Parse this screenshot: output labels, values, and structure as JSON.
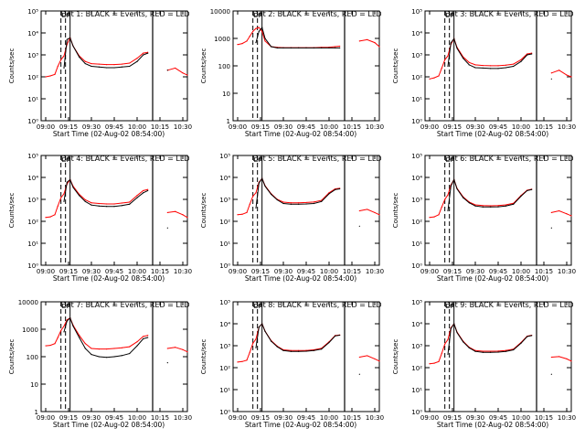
{
  "figure": {
    "x_axis_title": "Start Time (02-Aug-02 08:54:00)",
    "y_axis_title": "Counts/sec",
    "series_colors": {
      "black": "#000000",
      "red": "#ff0000"
    },
    "x_tick_labels": [
      "09:00",
      "09:15",
      "09:30",
      "09:45",
      "10:00",
      "10:15",
      "10:30"
    ],
    "markers": [
      "D",
      "P"
    ]
  },
  "chart_data": [
    {
      "type": "line",
      "title": "Det 1: BLACK = Events, RED = LLD",
      "ylog": true,
      "y_ticks": [
        {
          "v": 1,
          "label": "10⁰"
        },
        {
          "v": 10,
          "label": "10¹"
        },
        {
          "v": 100,
          "label": "10²"
        },
        {
          "v": 1000,
          "label": "10³"
        },
        {
          "v": 10000,
          "label": "10⁴"
        },
        {
          "v": 100000,
          "label": "10⁵"
        }
      ],
      "ylim": [
        1,
        100000
      ],
      "x": [
        "09:00",
        "09:03",
        "09:06",
        "09:08",
        "09:10",
        "09:12",
        "09:14",
        "09:16",
        "09:18",
        "09:22",
        "09:26",
        "09:30",
        "09:35",
        "09:40",
        "09:45",
        "09:50",
        "09:55",
        "10:00",
        "10:04",
        "10:07",
        "10:10",
        "10:13",
        "10:16",
        "10:20",
        "10:25",
        "10:30",
        "10:33"
      ],
      "series": [
        {
          "name": "BLACK",
          "values": [
            null,
            null,
            null,
            null,
            null,
            250,
            5000,
            6000,
            2500,
            800,
            400,
            300,
            280,
            260,
            260,
            280,
            300,
            500,
            1000,
            1200,
            null,
            null,
            null,
            200,
            null,
            null,
            null
          ]
        },
        {
          "name": "RED",
          "values": [
            100,
            110,
            130,
            300,
            600,
            900,
            3000,
            6000,
            2500,
            900,
            500,
            400,
            380,
            360,
            360,
            380,
            420,
            700,
            1200,
            1300,
            null,
            null,
            null,
            200,
            250,
            150,
            120
          ]
        }
      ]
    },
    {
      "type": "line",
      "title": "Det 2: BLACK = Events, RED = LLD",
      "ylog": true,
      "y_ticks": [
        {
          "v": 1,
          "label": "1"
        },
        {
          "v": 10,
          "label": "10"
        },
        {
          "v": 100,
          "label": "100"
        },
        {
          "v": 1000,
          "label": "1000"
        },
        {
          "v": 10000,
          "label": "10000"
        }
      ],
      "ylim": [
        1,
        10000
      ],
      "x": [
        "09:00",
        "09:03",
        "09:06",
        "09:08",
        "09:10",
        "09:12",
        "09:14",
        "09:16",
        "09:18",
        "09:22",
        "09:26",
        "09:30",
        "09:35",
        "09:40",
        "09:45",
        "09:50",
        "09:55",
        "10:00",
        "10:04",
        "10:07",
        "10:10",
        "10:13",
        "10:16",
        "10:20",
        "10:25",
        "10:30",
        "10:33"
      ],
      "series": [
        {
          "name": "BLACK",
          "values": [
            null,
            null,
            null,
            null,
            null,
            700,
            1800,
            2500,
            1000,
            500,
            450,
            450,
            450,
            450,
            450,
            450,
            450,
            450,
            450,
            450,
            null,
            null,
            null,
            null,
            null,
            null,
            null
          ]
        },
        {
          "name": "RED",
          "values": [
            600,
            650,
            800,
            1200,
            1800,
            2300,
            2500,
            1800,
            800,
            500,
            470,
            460,
            460,
            460,
            460,
            460,
            470,
            480,
            500,
            520,
            null,
            null,
            null,
            800,
            900,
            700,
            500
          ]
        }
      ]
    },
    {
      "type": "line",
      "title": "Det 3: BLACK = Events, RED = LLD",
      "ylog": true,
      "y_ticks": [
        {
          "v": 1,
          "label": "10⁰"
        },
        {
          "v": 10,
          "label": "10¹"
        },
        {
          "v": 100,
          "label": "10²"
        },
        {
          "v": 1000,
          "label": "10³"
        },
        {
          "v": 10000,
          "label": "10⁴"
        },
        {
          "v": 100000,
          "label": "10⁵"
        }
      ],
      "ylim": [
        1,
        100000
      ],
      "x": [
        "09:00",
        "09:03",
        "09:06",
        "09:08",
        "09:10",
        "09:12",
        "09:14",
        "09:16",
        "09:18",
        "09:22",
        "09:26",
        "09:30",
        "09:35",
        "09:40",
        "09:45",
        "09:50",
        "09:55",
        "10:00",
        "10:04",
        "10:07",
        "10:10",
        "10:13",
        "10:16",
        "10:20",
        "10:25",
        "10:30",
        "10:33"
      ],
      "series": [
        {
          "name": "BLACK",
          "values": [
            null,
            null,
            null,
            null,
            null,
            300,
            3500,
            5500,
            2000,
            700,
            350,
            260,
            250,
            240,
            240,
            260,
            300,
            500,
            1000,
            1100,
            null,
            null,
            null,
            80,
            null,
            null,
            null
          ]
        },
        {
          "name": "RED",
          "values": [
            80,
            90,
            110,
            250,
            600,
            900,
            3000,
            5500,
            2200,
            800,
            450,
            350,
            330,
            320,
            320,
            340,
            380,
            600,
            1100,
            1200,
            null,
            null,
            null,
            150,
            200,
            120,
            100
          ]
        }
      ]
    },
    {
      "type": "line",
      "title": "Det 4: BLACK = Events, RED = LLD",
      "ylog": true,
      "y_ticks": [
        {
          "v": 1,
          "label": "10⁰"
        },
        {
          "v": 10,
          "label": "10¹"
        },
        {
          "v": 100,
          "label": "10²"
        },
        {
          "v": 1000,
          "label": "10³"
        },
        {
          "v": 10000,
          "label": "10⁴"
        },
        {
          "v": 100000,
          "label": "10⁵"
        }
      ],
      "ylim": [
        1,
        100000
      ],
      "x": [
        "09:00",
        "09:03",
        "09:06",
        "09:08",
        "09:10",
        "09:12",
        "09:14",
        "09:16",
        "09:18",
        "09:22",
        "09:26",
        "09:30",
        "09:35",
        "09:40",
        "09:45",
        "09:50",
        "09:55",
        "10:00",
        "10:04",
        "10:07",
        "10:10",
        "10:13",
        "10:16",
        "10:20",
        "10:25",
        "10:30",
        "10:33"
      ],
      "series": [
        {
          "name": "BLACK",
          "values": [
            null,
            null,
            null,
            null,
            null,
            800,
            6000,
            8000,
            3500,
            1500,
            800,
            550,
            500,
            480,
            480,
            520,
            600,
            1200,
            2000,
            2500,
            null,
            null,
            null,
            50,
            null,
            null,
            null
          ]
        },
        {
          "name": "RED",
          "values": [
            150,
            160,
            200,
            500,
            1200,
            1800,
            5000,
            8000,
            4000,
            1700,
            950,
            700,
            650,
            620,
            620,
            680,
            750,
            1500,
            2500,
            2800,
            null,
            null,
            null,
            250,
            280,
            200,
            150
          ]
        }
      ]
    },
    {
      "type": "line",
      "title": "Det 5: BLACK = Events, RED = LLD",
      "ylog": true,
      "y_ticks": [
        {
          "v": 1,
          "label": "10⁰"
        },
        {
          "v": 10,
          "label": "10¹"
        },
        {
          "v": 100,
          "label": "10²"
        },
        {
          "v": 1000,
          "label": "10³"
        },
        {
          "v": 10000,
          "label": "10⁴"
        },
        {
          "v": 100000,
          "label": "10⁵"
        }
      ],
      "ylim": [
        1,
        100000
      ],
      "x": [
        "09:00",
        "09:03",
        "09:06",
        "09:08",
        "09:10",
        "09:12",
        "09:14",
        "09:16",
        "09:18",
        "09:22",
        "09:26",
        "09:30",
        "09:35",
        "09:40",
        "09:45",
        "09:50",
        "09:55",
        "10:00",
        "10:04",
        "10:07",
        "10:10",
        "10:13",
        "10:16",
        "10:20",
        "10:25",
        "10:30",
        "10:33"
      ],
      "series": [
        {
          "name": "BLACK",
          "values": [
            null,
            null,
            null,
            null,
            null,
            400,
            5500,
            9000,
            4000,
            1700,
            950,
            650,
            600,
            600,
            620,
            650,
            800,
            1800,
            2800,
            3000,
            null,
            null,
            null,
            60,
            null,
            null,
            null
          ]
        },
        {
          "name": "RED",
          "values": [
            200,
            210,
            250,
            600,
            1400,
            2000,
            6000,
            9000,
            4200,
            1800,
            1000,
            750,
            700,
            700,
            720,
            760,
            900,
            2000,
            3000,
            3200,
            null,
            null,
            null,
            300,
            350,
            250,
            200
          ]
        }
      ]
    },
    {
      "type": "line",
      "title": "Det 6: BLACK = Events, RED = LLD",
      "ylog": true,
      "y_ticks": [
        {
          "v": 1,
          "label": "10⁰"
        },
        {
          "v": 10,
          "label": "10¹"
        },
        {
          "v": 100,
          "label": "10²"
        },
        {
          "v": 1000,
          "label": "10³"
        },
        {
          "v": 10000,
          "label": "10⁴"
        },
        {
          "v": 100000,
          "label": "10⁵"
        }
      ],
      "ylim": [
        1,
        100000
      ],
      "x": [
        "09:00",
        "09:03",
        "09:06",
        "09:08",
        "09:10",
        "09:12",
        "09:14",
        "09:16",
        "09:18",
        "09:22",
        "09:26",
        "09:30",
        "09:35",
        "09:40",
        "09:45",
        "09:50",
        "09:55",
        "10:00",
        "10:04",
        "10:07",
        "10:10",
        "10:13",
        "10:16",
        "10:20",
        "10:25",
        "10:30",
        "10:33"
      ],
      "series": [
        {
          "name": "BLACK",
          "values": [
            null,
            null,
            null,
            null,
            null,
            300,
            4000,
            8000,
            3000,
            1200,
            700,
            500,
            450,
            450,
            460,
            500,
            600,
            1400,
            2500,
            2800,
            null,
            null,
            null,
            50,
            null,
            null,
            null
          ]
        },
        {
          "name": "RED",
          "values": [
            150,
            160,
            200,
            450,
            1000,
            1600,
            4500,
            8000,
            3200,
            1300,
            760,
            560,
            520,
            510,
            520,
            560,
            660,
            1500,
            2600,
            2900,
            null,
            null,
            null,
            250,
            300,
            220,
            180
          ]
        }
      ]
    },
    {
      "type": "line",
      "title": "Det 7: BLACK = Events, RED = LLD",
      "ylog": true,
      "y_ticks": [
        {
          "v": 1,
          "label": "1"
        },
        {
          "v": 10,
          "label": "10"
        },
        {
          "v": 100,
          "label": "100"
        },
        {
          "v": 1000,
          "label": "1000"
        },
        {
          "v": 10000,
          "label": "10000"
        }
      ],
      "ylim": [
        1,
        10000
      ],
      "x": [
        "09:00",
        "09:03",
        "09:06",
        "09:08",
        "09:10",
        "09:12",
        "09:14",
        "09:16",
        "09:18",
        "09:22",
        "09:26",
        "09:30",
        "09:35",
        "09:40",
        "09:45",
        "09:50",
        "09:55",
        "10:00",
        "10:04",
        "10:07",
        "10:10",
        "10:13",
        "10:16",
        "10:20",
        "10:25",
        "10:30",
        "10:33"
      ],
      "series": [
        {
          "name": "BLACK",
          "values": [
            null,
            null,
            null,
            null,
            null,
            800,
            2000,
            2600,
            1300,
            500,
            200,
            120,
            100,
            95,
            100,
            110,
            130,
            250,
            450,
            500,
            null,
            null,
            null,
            60,
            null,
            null,
            null
          ]
        },
        {
          "name": "RED",
          "values": [
            250,
            260,
            300,
            500,
            900,
            1300,
            2200,
            2600,
            1400,
            600,
            300,
            200,
            190,
            190,
            200,
            210,
            230,
            350,
            550,
            600,
            null,
            null,
            null,
            200,
            220,
            180,
            150
          ]
        }
      ]
    },
    {
      "type": "line",
      "title": "Det 8: BLACK = Events, RED = LLD",
      "ylog": true,
      "y_ticks": [
        {
          "v": 1,
          "label": "10⁰"
        },
        {
          "v": 10,
          "label": "10¹"
        },
        {
          "v": 100,
          "label": "10²"
        },
        {
          "v": 1000,
          "label": "10³"
        },
        {
          "v": 10000,
          "label": "10⁴"
        },
        {
          "v": 100000,
          "label": "10⁵"
        }
      ],
      "ylim": [
        1,
        100000
      ],
      "x": [
        "09:00",
        "09:03",
        "09:06",
        "09:08",
        "09:10",
        "09:12",
        "09:14",
        "09:16",
        "09:18",
        "09:22",
        "09:26",
        "09:30",
        "09:35",
        "09:40",
        "09:45",
        "09:50",
        "09:55",
        "10:00",
        "10:04",
        "10:07",
        "10:10",
        "10:13",
        "10:16",
        "10:20",
        "10:25",
        "10:30",
        "10:33"
      ],
      "series": [
        {
          "name": "BLACK",
          "values": [
            null,
            null,
            null,
            null,
            null,
            800,
            7000,
            10000,
            4500,
            1600,
            900,
            600,
            550,
            550,
            560,
            600,
            700,
            1400,
            2800,
            3000,
            null,
            null,
            null,
            50,
            null,
            null,
            null
          ]
        },
        {
          "name": "RED",
          "values": [
            180,
            190,
            220,
            500,
            1300,
            2000,
            7000,
            10000,
            4600,
            1700,
            950,
            650,
            600,
            600,
            610,
            650,
            760,
            1500,
            2900,
            3100,
            null,
            null,
            null,
            300,
            350,
            250,
            200
          ]
        }
      ]
    },
    {
      "type": "line",
      "title": "Det 9: BLACK = Events, RED = LLD",
      "ylog": true,
      "y_ticks": [
        {
          "v": 1,
          "label": "10⁰"
        },
        {
          "v": 10,
          "label": "10¹"
        },
        {
          "v": 100,
          "label": "10²"
        },
        {
          "v": 1000,
          "label": "10³"
        },
        {
          "v": 10000,
          "label": "10⁴"
        },
        {
          "v": 100000,
          "label": "10⁵"
        }
      ],
      "ylim": [
        1,
        100000
      ],
      "x": [
        "09:00",
        "09:03",
        "09:06",
        "09:08",
        "09:10",
        "09:12",
        "09:14",
        "09:16",
        "09:18",
        "09:22",
        "09:26",
        "09:30",
        "09:35",
        "09:40",
        "09:45",
        "09:50",
        "09:55",
        "10:00",
        "10:04",
        "10:07",
        "10:10",
        "10:13",
        "10:16",
        "10:20",
        "10:25",
        "10:30",
        "10:33"
      ],
      "series": [
        {
          "name": "BLACK",
          "values": [
            null,
            null,
            null,
            null,
            null,
            400,
            6000,
            10000,
            4000,
            1500,
            800,
            550,
            500,
            500,
            510,
            550,
            650,
            1300,
            2600,
            2900,
            null,
            null,
            null,
            50,
            null,
            null,
            null
          ]
        },
        {
          "name": "RED",
          "values": [
            150,
            160,
            190,
            450,
            1200,
            1900,
            6500,
            10000,
            4200,
            1600,
            850,
            600,
            560,
            560,
            570,
            610,
            700,
            1400,
            2700,
            3000,
            null,
            null,
            null,
            300,
            320,
            250,
            200
          ]
        }
      ]
    }
  ]
}
